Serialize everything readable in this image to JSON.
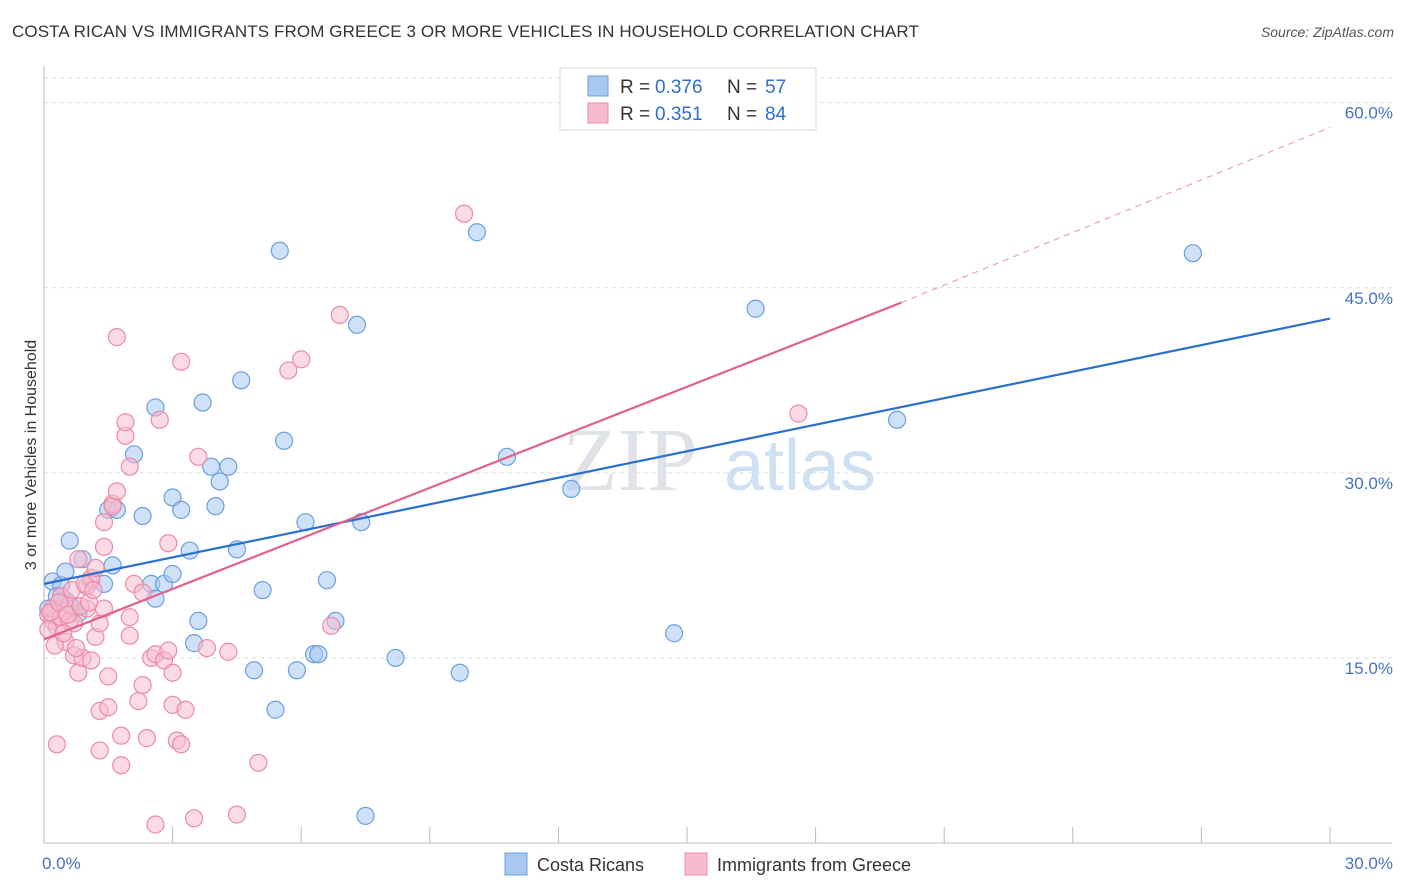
{
  "title": "COSTA RICAN VS IMMIGRANTS FROM GREECE 3 OR MORE VEHICLES IN HOUSEHOLD CORRELATION CHART",
  "source": "Source: ZipAtlas.com",
  "watermark": {
    "zip": "ZIP",
    "atlas": "atlas"
  },
  "chart_data": {
    "type": "scatter",
    "ylabel": "3 or more Vehicles in Household",
    "xlim": [
      0,
      30
    ],
    "ylim": [
      0,
      62
    ],
    "x_ticks": [
      "0.0%",
      "30.0%"
    ],
    "y_ticks": [
      {
        "v": 15,
        "label": "15.0%"
      },
      {
        "v": 30,
        "label": "30.0%"
      },
      {
        "v": 45,
        "label": "45.0%"
      },
      {
        "v": 60,
        "label": "60.0%"
      }
    ],
    "legend": [
      {
        "label": "R =",
        "r": "0.376",
        "nlabel": "N =",
        "n": "57"
      },
      {
        "label": "R =",
        "r": "0.351",
        "nlabel": "N =",
        "n": "84"
      }
    ],
    "series": [
      {
        "name": "Costa Ricans",
        "fill": "#a8c8f0",
        "stroke": "#6a9fe0",
        "line": "#2a6fd0",
        "trend": {
          "x0": 0,
          "y0": 21.0,
          "x1": 30,
          "y1": 42.5
        },
        "points": [
          [
            0.2,
            21.2
          ],
          [
            0.4,
            20.9
          ],
          [
            0.5,
            19.7
          ],
          [
            0.3,
            20.0
          ],
          [
            0.1,
            19.0
          ],
          [
            0.5,
            22.0
          ],
          [
            0.6,
            24.5
          ],
          [
            0.7,
            19.0
          ],
          [
            0.9,
            23.0
          ],
          [
            0.8,
            18.6
          ],
          [
            1.4,
            21.0
          ],
          [
            1.6,
            22.5
          ],
          [
            1.5,
            27.0
          ],
          [
            1.7,
            27.0
          ],
          [
            2.1,
            31.5
          ],
          [
            2.3,
            26.5
          ],
          [
            2.5,
            21.0
          ],
          [
            2.6,
            35.3
          ],
          [
            2.6,
            19.8
          ],
          [
            2.8,
            21.0
          ],
          [
            3.0,
            21.8
          ],
          [
            3.0,
            28.0
          ],
          [
            3.2,
            27.0
          ],
          [
            3.4,
            23.7
          ],
          [
            3.6,
            18.0
          ],
          [
            3.5,
            16.2
          ],
          [
            3.7,
            35.7
          ],
          [
            3.9,
            30.5
          ],
          [
            4.0,
            27.3
          ],
          [
            4.1,
            29.3
          ],
          [
            4.3,
            30.5
          ],
          [
            4.5,
            23.8
          ],
          [
            4.6,
            37.5
          ],
          [
            4.9,
            14.0
          ],
          [
            5.1,
            20.5
          ],
          [
            5.4,
            10.8
          ],
          [
            5.5,
            48.0
          ],
          [
            5.6,
            32.6
          ],
          [
            5.9,
            14.0
          ],
          [
            6.1,
            26.0
          ],
          [
            6.3,
            15.3
          ],
          [
            6.4,
            15.3
          ],
          [
            6.6,
            21.3
          ],
          [
            6.8,
            18.0
          ],
          [
            7.3,
            42.0
          ],
          [
            7.4,
            26.0
          ],
          [
            7.5,
            2.2
          ],
          [
            8.2,
            15.0
          ],
          [
            9.7,
            13.8
          ],
          [
            10.1,
            49.5
          ],
          [
            10.8,
            31.3
          ],
          [
            12.3,
            28.7
          ],
          [
            14.7,
            17.0
          ],
          [
            16.6,
            43.3
          ],
          [
            19.9,
            34.3
          ],
          [
            26.8,
            47.8
          ],
          [
            0.4,
            20.0
          ]
        ]
      },
      {
        "name": "Immigrants from Greece",
        "fill": "#f6bccd",
        "stroke": "#ec8aa8",
        "line": "#e0608f",
        "trend": {
          "x0": 0,
          "y0": 16.5,
          "x1": 20,
          "y1": 43.8
        },
        "dashed": {
          "x0": 20,
          "y0": 43.8,
          "x1": 30,
          "y1": 58.0
        },
        "points": [
          [
            0.1,
            18.5
          ],
          [
            0.2,
            18.0
          ],
          [
            0.2,
            19.0
          ],
          [
            0.3,
            17.5
          ],
          [
            0.3,
            8.0
          ],
          [
            0.4,
            18.3
          ],
          [
            0.4,
            20.0
          ],
          [
            0.5,
            18.8
          ],
          [
            0.5,
            16.3
          ],
          [
            0.6,
            18.0
          ],
          [
            0.6,
            19.3
          ],
          [
            0.7,
            17.8
          ],
          [
            0.7,
            15.2
          ],
          [
            0.8,
            13.8
          ],
          [
            0.8,
            23.0
          ],
          [
            0.9,
            15.0
          ],
          [
            1.0,
            20.8
          ],
          [
            1.0,
            19.0
          ],
          [
            1.1,
            21.3
          ],
          [
            1.1,
            14.8
          ],
          [
            1.1,
            21.5
          ],
          [
            1.2,
            22.3
          ],
          [
            1.2,
            16.7
          ],
          [
            1.3,
            17.8
          ],
          [
            1.3,
            7.5
          ],
          [
            1.3,
            10.7
          ],
          [
            1.4,
            19.0
          ],
          [
            1.4,
            24.0
          ],
          [
            1.4,
            26.0
          ],
          [
            1.5,
            11.0
          ],
          [
            1.5,
            13.5
          ],
          [
            1.6,
            27.5
          ],
          [
            1.6,
            27.3
          ],
          [
            1.7,
            41.0
          ],
          [
            1.7,
            28.5
          ],
          [
            1.8,
            8.7
          ],
          [
            1.8,
            6.3
          ],
          [
            1.9,
            33.0
          ],
          [
            1.9,
            34.1
          ],
          [
            2.0,
            30.5
          ],
          [
            2.0,
            16.8
          ],
          [
            2.0,
            18.3
          ],
          [
            2.1,
            21.0
          ],
          [
            2.2,
            11.5
          ],
          [
            2.3,
            12.8
          ],
          [
            2.3,
            20.3
          ],
          [
            2.4,
            8.5
          ],
          [
            2.5,
            15.0
          ],
          [
            2.6,
            15.3
          ],
          [
            2.6,
            1.5
          ],
          [
            2.7,
            34.3
          ],
          [
            2.8,
            14.8
          ],
          [
            2.9,
            24.3
          ],
          [
            2.9,
            15.6
          ],
          [
            3.0,
            13.8
          ],
          [
            3.0,
            11.2
          ],
          [
            3.1,
            8.3
          ],
          [
            3.2,
            8.0
          ],
          [
            3.2,
            39.0
          ],
          [
            3.3,
            10.8
          ],
          [
            3.5,
            2.0
          ],
          [
            3.6,
            31.3
          ],
          [
            3.8,
            15.8
          ],
          [
            4.3,
            15.5
          ],
          [
            4.5,
            2.3
          ],
          [
            5.0,
            6.5
          ],
          [
            5.7,
            38.3
          ],
          [
            6.0,
            39.2
          ],
          [
            6.7,
            17.6
          ],
          [
            6.9,
            42.8
          ],
          [
            9.8,
            51.0
          ],
          [
            17.6,
            34.8
          ],
          [
            0.1,
            17.3
          ],
          [
            0.15,
            18.7
          ],
          [
            0.25,
            16.0
          ],
          [
            0.35,
            19.5
          ],
          [
            0.45,
            17.0
          ],
          [
            0.55,
            18.5
          ],
          [
            0.65,
            20.5
          ],
          [
            0.75,
            15.8
          ],
          [
            0.85,
            19.2
          ],
          [
            0.95,
            21.0
          ],
          [
            1.05,
            19.5
          ],
          [
            1.15,
            20.5
          ]
        ]
      }
    ]
  }
}
